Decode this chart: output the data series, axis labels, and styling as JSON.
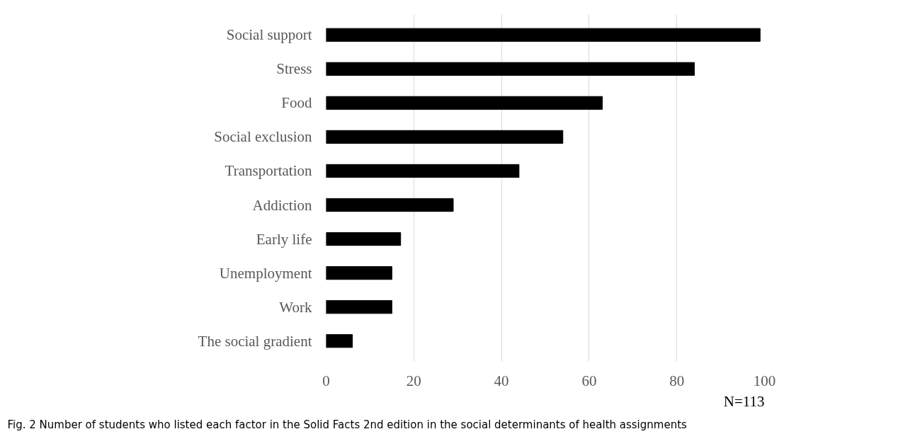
{
  "chart_data": {
    "type": "bar",
    "orientation": "horizontal",
    "categories": [
      "Social support",
      "Stress",
      "Food",
      "Social exclusion",
      "Transportation",
      "Addiction",
      "Early life",
      "Unemployment",
      "Work",
      "The social gradient"
    ],
    "values": [
      99,
      84,
      63,
      54,
      44,
      29,
      17,
      15,
      15,
      6
    ],
    "color": "#000000",
    "xlim": [
      0,
      100
    ],
    "xticks": [
      0,
      20,
      40,
      60,
      80,
      100
    ],
    "grid": "x",
    "annotations": [
      "N=113",
      "Fig. 2 Number of students who listed each factor in the Solid Facts 2nd edition in the social determinants of health assignments"
    ]
  }
}
